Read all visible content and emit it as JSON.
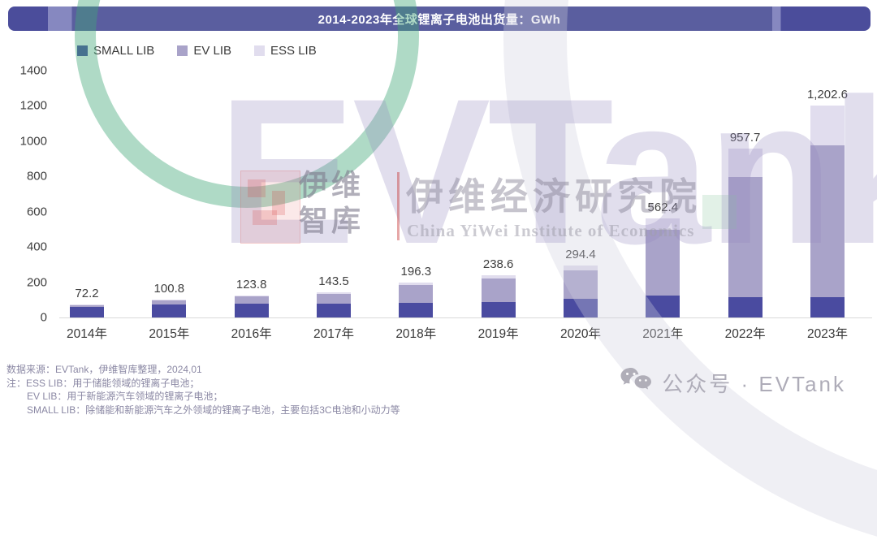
{
  "title": {
    "text": "2014-2023年全球锂离子电池出货量：GWh"
  },
  "legend": {
    "items": [
      {
        "label": "SMALL LIB",
        "color": "#4A4BA0"
      },
      {
        "label": "EV LIB",
        "color": "#A9A3C9"
      },
      {
        "label": "ESS LIB",
        "color": "#E1DDEE"
      }
    ]
  },
  "chart_data": {
    "type": "bar",
    "stacked": true,
    "title": "2014-2023年全球锂离子电池出货量：GWh",
    "xlabel": "",
    "ylabel": "GWh",
    "ylim": [
      0,
      1400
    ],
    "yticks": [
      0,
      200,
      400,
      600,
      800,
      1000,
      1200,
      1400
    ],
    "grid": false,
    "legend_position": "top-left",
    "categories": [
      "2014年",
      "2015年",
      "2016年",
      "2017年",
      "2018年",
      "2019年",
      "2020年",
      "2021年",
      "2022年",
      "2023年"
    ],
    "series": [
      {
        "name": "SMALL LIB",
        "color": "#4A4BA0",
        "values": [
          61.0,
          72.0,
          78.0,
          80.0,
          85.0,
          88.0,
          107.7,
          125.1,
          114.2,
          113.2
        ]
      },
      {
        "name": "EV LIB",
        "color": "#A9A3C9",
        "values": [
          10.0,
          25.3,
          41.0,
          55.0,
          100.0,
          133.0,
          158.2,
          371.0,
          684.2,
          865.2
        ]
      },
      {
        "name": "ESS LIB",
        "color": "#E1DDEE",
        "values": [
          1.2,
          3.5,
          4.8,
          8.5,
          11.3,
          17.6,
          28.5,
          66.3,
          159.3,
          224.2
        ]
      }
    ],
    "totals": [
      72.2,
      100.8,
      123.8,
      143.5,
      196.3,
      238.6,
      294.4,
      562.4,
      957.7,
      1202.6
    ],
    "total_labels": [
      "72.2",
      "100.8",
      "123.8",
      "143.5",
      "196.3",
      "238.6",
      "294.4",
      "562.4",
      "957.7",
      "1,202.6"
    ]
  },
  "watermark": {
    "evtank_big": "EVTank",
    "yiwei_line1": "伊维",
    "yiwei_line2": "智库",
    "institute_cn": "伊维经济研究院",
    "institute_en": "China YiWei Institute of Economics"
  },
  "footer": {
    "lines": [
      "数据来源：EVTank，伊维智库整理，2024,01",
      "注：ESS LIB：用于储能领域的锂离子电池；",
      "EV LIB：用于新能源汽车领域的锂离子电池；",
      "SMALL LIB：除储能和新能源汽车之外领域的锂离子电池，主要包括3C电池和小动力等"
    ]
  },
  "wechat": {
    "label": "公众号 · EVTank"
  },
  "colors": {
    "banner_main": "#5A5E9F",
    "banner_cap": "#4B4D9B",
    "banner_separator": "#8688C0",
    "axis_line": "#d9d9d9",
    "tick_text": "#3d3d3d",
    "data_label_text": "#3f3f3f"
  }
}
